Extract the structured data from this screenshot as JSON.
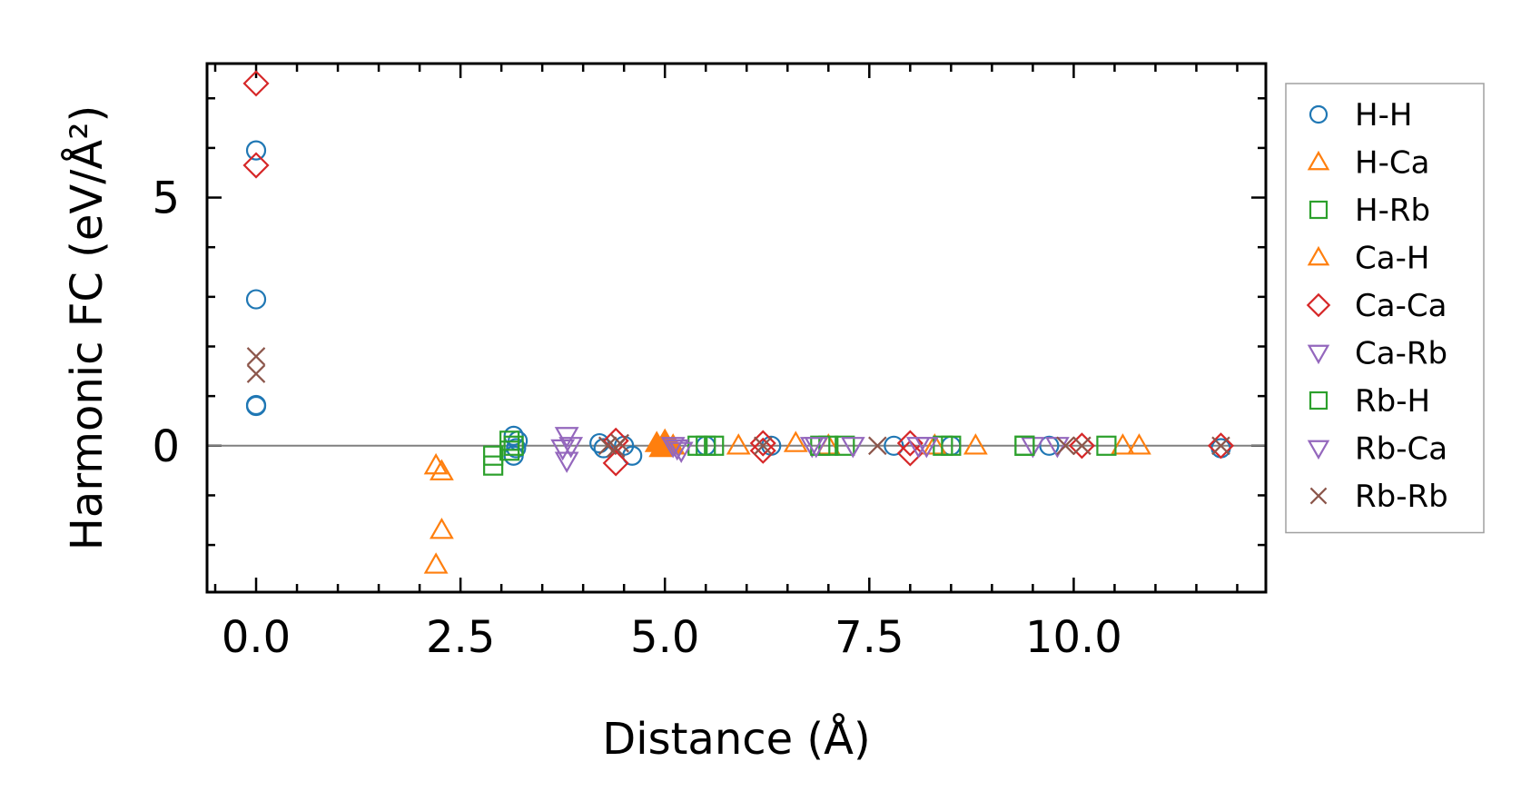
{
  "chart_data": {
    "type": "scatter",
    "title": "",
    "xlabel": "Distance (Å)",
    "ylabel": "Harmonic FC (eV/Å²)",
    "xlim": [
      -0.6,
      12.35
    ],
    "ylim": [
      -2.95,
      7.7
    ],
    "xticks": [
      0.0,
      2.5,
      5.0,
      7.5,
      10.0
    ],
    "xtick_labels": [
      "0.0",
      "2.5",
      "5.0",
      "7.5",
      "10.0"
    ],
    "yticks": [
      0,
      5
    ],
    "ytick_labels": [
      "0",
      "5"
    ],
    "zero_line": true,
    "grid": false,
    "legend_position": "outside-right",
    "series": [
      {
        "name": "H-H",
        "marker": "circle",
        "color": "#1f77b4",
        "filled": false,
        "points": [
          [
            0.0,
            5.95
          ],
          [
            0.0,
            2.95
          ],
          [
            0.0,
            0.82
          ],
          [
            0.0,
            0.8
          ],
          [
            3.15,
            0.2
          ],
          [
            3.15,
            -0.2
          ],
          [
            3.2,
            0.1
          ],
          [
            3.18,
            -0.05
          ],
          [
            4.2,
            0.05
          ],
          [
            4.25,
            -0.05
          ],
          [
            4.5,
            0.0
          ],
          [
            4.6,
            -0.2
          ],
          [
            5.5,
            0.0
          ],
          [
            6.3,
            0.0
          ],
          [
            7.8,
            0.0
          ],
          [
            8.5,
            0.0
          ],
          [
            9.7,
            0.0
          ],
          [
            11.8,
            -0.05
          ]
        ]
      },
      {
        "name": "H-Ca",
        "marker": "triangle-up",
        "color": "#ff7f0e",
        "filled": false,
        "points": [
          [
            2.2,
            -0.4
          ],
          [
            2.27,
            -0.52
          ],
          [
            2.27,
            -1.7
          ],
          [
            2.2,
            -2.4
          ],
          [
            5.0,
            0.0
          ],
          [
            5.9,
            0.0
          ],
          [
            6.6,
            0.05
          ],
          [
            7.0,
            0.0
          ],
          [
            8.3,
            0.0
          ],
          [
            8.8,
            0.0
          ],
          [
            10.6,
            0.0
          ],
          [
            10.8,
            0.0
          ]
        ]
      },
      {
        "name": "H-Rb",
        "marker": "square",
        "color": "#2ca02c",
        "filled": false,
        "points": [
          [
            2.9,
            -0.2
          ],
          [
            2.9,
            -0.4
          ],
          [
            3.1,
            -0.1
          ],
          [
            3.15,
            0.0
          ],
          [
            5.4,
            0.0
          ],
          [
            5.6,
            0.0
          ],
          [
            7.0,
            0.0
          ],
          [
            7.2,
            0.0
          ],
          [
            8.4,
            0.0
          ],
          [
            9.4,
            0.0
          ],
          [
            10.4,
            0.0
          ]
        ]
      },
      {
        "name": "Ca-H",
        "marker": "triangle-up",
        "color": "#ff7f0e",
        "filled": true,
        "points": [
          [
            4.9,
            0.05
          ],
          [
            5.0,
            0.1
          ],
          [
            5.1,
            0.0
          ],
          [
            4.95,
            -0.05
          ]
        ]
      },
      {
        "name": "Ca-Ca",
        "marker": "diamond",
        "color": "#d62728",
        "filled": false,
        "points": [
          [
            0.0,
            7.3
          ],
          [
            0.0,
            5.65
          ],
          [
            4.4,
            0.1
          ],
          [
            4.4,
            -0.35
          ],
          [
            6.2,
            0.05
          ],
          [
            6.2,
            -0.1
          ],
          [
            8.0,
            0.05
          ],
          [
            8.0,
            -0.15
          ],
          [
            10.1,
            0.0
          ],
          [
            11.8,
            0.0
          ]
        ]
      },
      {
        "name": "Ca-Rb",
        "marker": "triangle-down",
        "color": "#9467bd",
        "filled": false,
        "points": [
          [
            3.8,
            0.2
          ],
          [
            3.8,
            -0.3
          ],
          [
            3.75,
            -0.05
          ],
          [
            5.1,
            0.0
          ],
          [
            5.2,
            -0.1
          ],
          [
            6.8,
            0.0
          ],
          [
            7.3,
            0.0
          ],
          [
            8.1,
            0.0
          ],
          [
            9.5,
            0.0
          ],
          [
            9.8,
            0.0
          ]
        ]
      },
      {
        "name": "Rb-H",
        "marker": "square",
        "color": "#2ca02c",
        "filled": false,
        "points": [
          [
            3.1,
            0.1
          ],
          [
            5.5,
            0.0
          ],
          [
            6.9,
            0.0
          ],
          [
            8.5,
            0.0
          ],
          [
            9.4,
            0.0
          ]
        ]
      },
      {
        "name": "Rb-Ca",
        "marker": "triangle-down",
        "color": "#9467bd",
        "filled": false,
        "points": [
          [
            3.85,
            0.0
          ],
          [
            5.15,
            -0.05
          ],
          [
            6.85,
            0.0
          ],
          [
            8.2,
            0.0
          ]
        ]
      },
      {
        "name": "Rb-Rb",
        "marker": "x",
        "color": "#8c564b",
        "filled": false,
        "points": [
          [
            0.0,
            1.8
          ],
          [
            0.0,
            1.45
          ],
          [
            4.3,
            0.0
          ],
          [
            4.4,
            -0.05
          ],
          [
            4.45,
            0.05
          ],
          [
            6.2,
            0.0
          ],
          [
            7.6,
            0.0
          ],
          [
            9.9,
            0.0
          ],
          [
            10.1,
            0.0
          ],
          [
            11.8,
            0.0
          ]
        ]
      }
    ]
  }
}
